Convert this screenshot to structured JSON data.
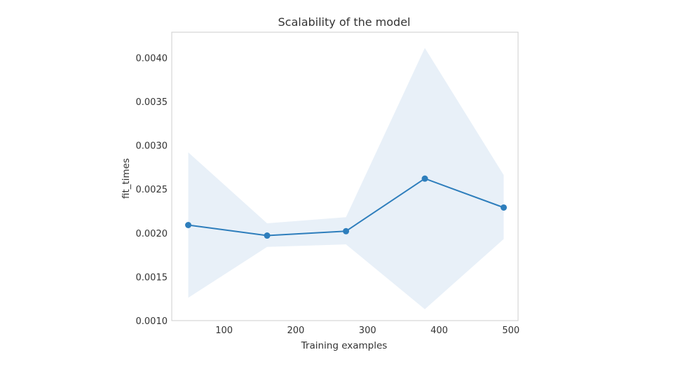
{
  "chart_data": {
    "type": "line",
    "title": "Scalability of the model",
    "xlabel": "Training examples",
    "ylabel": "fit_times",
    "x": [
      50,
      160,
      270,
      380,
      490
    ],
    "series": [
      {
        "values": [
          0.00209,
          0.00197,
          0.00202,
          0.00262,
          0.00229
        ],
        "band_upper": [
          0.00292,
          0.00211,
          0.00218,
          0.00411,
          0.00266
        ],
        "band_lower": [
          0.00126,
          0.00184,
          0.00187,
          0.00113,
          0.00193
        ],
        "color": "#2e7ebc",
        "band_color": "#e8f0f8"
      }
    ],
    "xlim": [
      27,
      510
    ],
    "ylim": [
      0.001,
      0.00429
    ],
    "xticks": [
      100,
      200,
      300,
      400,
      500
    ],
    "xtick_labels": [
      "100",
      "200",
      "300",
      "400",
      "500"
    ],
    "yticks": [
      0.001,
      0.0015,
      0.002,
      0.0025,
      0.003,
      0.0035,
      0.004
    ],
    "ytick_labels": [
      "0.0010",
      "0.0015",
      "0.0020",
      "0.0025",
      "0.0030",
      "0.0035",
      "0.0040"
    ],
    "grid": false
  }
}
